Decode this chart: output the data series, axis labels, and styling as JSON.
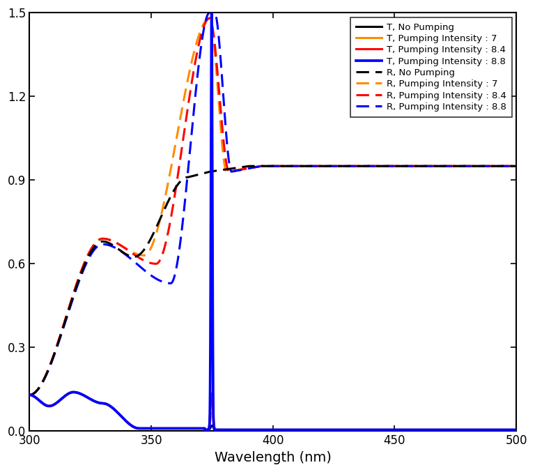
{
  "title": "",
  "xlabel": "Wavelength (nm)",
  "ylabel": "",
  "xlim": [
    300,
    500
  ],
  "ylim": [
    0,
    1.5
  ],
  "yticks": [
    0.0,
    0.3,
    0.6,
    0.9,
    1.2,
    1.5
  ],
  "xticks": [
    300,
    350,
    400,
    450,
    500
  ],
  "colors": {
    "black": "#000000",
    "orange": "#FF8C00",
    "red": "#FF0000",
    "blue": "#0000FF"
  },
  "legend_entries": [
    {
      "label": "T, No Pumping",
      "color": "#000000",
      "ls": "solid"
    },
    {
      "label": "T, Pumping Intensity : 7",
      "color": "#FF8C00",
      "ls": "solid"
    },
    {
      "label": "T, Pumping Intensity : 8.4",
      "color": "#FF0000",
      "ls": "solid"
    },
    {
      "label": "T, Pumping Intensity : 8.8",
      "color": "#0000FF",
      "ls": "solid"
    },
    {
      "label": "R, No Pumping",
      "color": "#000000",
      "ls": "dashed"
    },
    {
      "label": "R, Pumping Intensity : 7",
      "color": "#FF8C00",
      "ls": "dashed"
    },
    {
      "label": "R, Pumping Intensity : 8.4",
      "color": "#FF0000",
      "ls": "dashed"
    },
    {
      "label": "R, Pumping Intensity : 8.8",
      "color": "#0000FF",
      "ls": "dashed"
    }
  ],
  "lw": 2.2,
  "background_color": "#ffffff"
}
